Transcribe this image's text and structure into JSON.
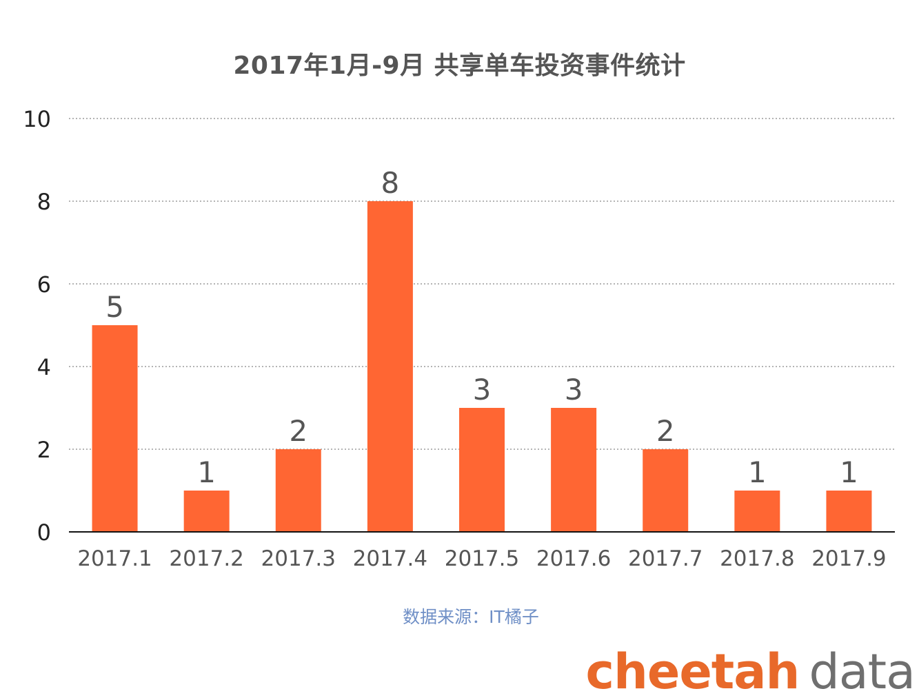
{
  "chart_data": {
    "type": "bar",
    "title": "2017年1月-9月 共享单车投资事件统计",
    "categories": [
      "2017.1",
      "2017.2",
      "2017.3",
      "2017.4",
      "2017.5",
      "2017.6",
      "2017.7",
      "2017.8",
      "2017.9"
    ],
    "values": [
      5,
      1,
      2,
      8,
      3,
      3,
      2,
      1,
      1
    ],
    "ylim": [
      0,
      10
    ],
    "yticks": [
      "0",
      "2",
      "4",
      "6",
      "8",
      "10"
    ],
    "xlabel": "",
    "ylabel": "",
    "grid": true,
    "data_labels": true,
    "bar_color": "#ff6633",
    "grid_color": "#9a9a9a",
    "axis_text_color": "#555555",
    "legend": "none"
  },
  "source_note": "数据来源：IT橘子",
  "brand": {
    "part1": "cheetah",
    "part2": "data",
    "color1": "#e8692a",
    "color2": "#6f6f6f"
  }
}
